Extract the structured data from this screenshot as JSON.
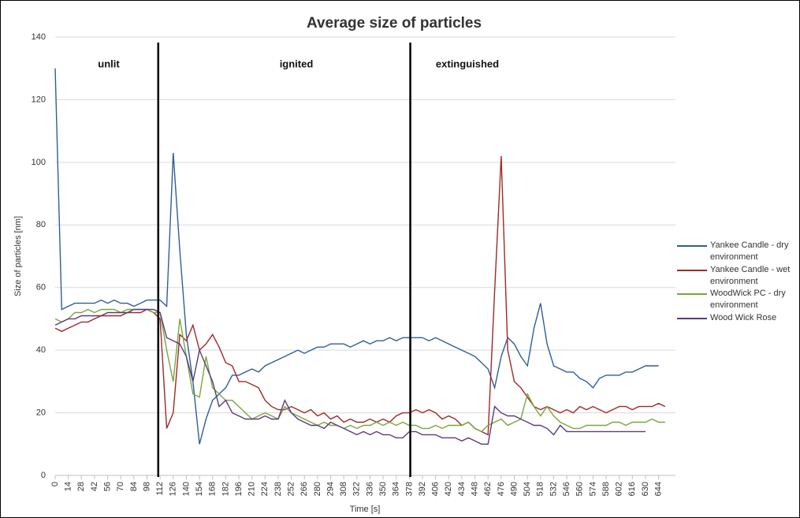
{
  "chart_data": {
    "type": "line",
    "title": "Average size of particles",
    "x_label": "Time [s]",
    "y_label": "Size of particles [nm]",
    "xlim": [
      0,
      662
    ],
    "ylim": [
      0,
      140
    ],
    "yticks": [
      0,
      20,
      40,
      60,
      80,
      100,
      120,
      140
    ],
    "xticks": [
      0,
      14,
      28,
      42,
      56,
      70,
      84,
      98,
      112,
      126,
      140,
      154,
      168,
      182,
      196,
      210,
      224,
      238,
      252,
      266,
      280,
      294,
      308,
      322,
      336,
      350,
      364,
      378,
      392,
      406,
      420,
      434,
      448,
      462,
      476,
      490,
      504,
      518,
      532,
      546,
      560,
      574,
      588,
      602,
      616,
      630,
      644
    ],
    "grid": true,
    "legend": "right",
    "phase_lines": [
      110,
      379
    ],
    "phases": [
      "unlit",
      "ignited",
      "extinguished"
    ],
    "x": [
      0,
      7,
      14,
      21,
      28,
      35,
      42,
      49,
      56,
      63,
      70,
      77,
      84,
      91,
      98,
      105,
      112,
      119,
      126,
      133,
      140,
      147,
      154,
      161,
      168,
      175,
      182,
      189,
      196,
      203,
      210,
      217,
      224,
      231,
      238,
      245,
      252,
      259,
      266,
      273,
      280,
      287,
      294,
      301,
      308,
      315,
      322,
      329,
      336,
      343,
      350,
      357,
      364,
      371,
      378,
      385,
      392,
      399,
      406,
      413,
      420,
      427,
      434,
      441,
      448,
      455,
      462,
      469,
      476,
      483,
      490,
      497,
      504,
      511,
      518,
      525,
      532,
      539,
      546,
      553,
      560,
      567,
      574,
      581,
      588,
      595,
      602,
      609,
      616,
      623,
      630,
      637,
      644,
      651
    ],
    "series": [
      {
        "name": "Yankee Candle - dry environment",
        "color": "#2e5f96",
        "values": [
          130,
          53,
          54,
          55,
          55,
          55,
          55,
          56,
          55,
          56,
          55,
          55,
          54,
          55,
          56,
          56,
          56,
          54,
          103,
          72,
          45,
          30,
          10,
          18,
          24,
          26,
          28,
          32,
          32,
          33,
          34,
          33,
          35,
          36,
          37,
          38,
          39,
          40,
          39,
          40,
          41,
          41,
          42,
          42,
          42,
          41,
          42,
          43,
          42,
          43,
          43,
          44,
          43,
          44,
          44,
          44,
          44,
          43,
          44,
          43,
          42,
          41,
          40,
          39,
          38,
          36,
          34,
          28,
          38,
          44,
          42,
          38,
          35,
          47,
          55,
          42,
          35,
          34,
          33,
          33,
          31,
          30,
          28,
          31,
          32,
          32,
          32,
          33,
          33,
          34,
          35,
          35,
          35,
          null
        ]
      },
      {
        "name": "Yankee Candle - wet environment",
        "color": "#a02828",
        "values": [
          47,
          46,
          47,
          48,
          49,
          49,
          50,
          51,
          51,
          51,
          51,
          52,
          52,
          52,
          53,
          52,
          50,
          15,
          20,
          45,
          43,
          48,
          40,
          42,
          45,
          41,
          36,
          35,
          30,
          30,
          29,
          28,
          24,
          22,
          21,
          21,
          22,
          21,
          20,
          21,
          19,
          20,
          18,
          19,
          17,
          18,
          17,
          17,
          18,
          17,
          18,
          17,
          19,
          20,
          20,
          21,
          20,
          21,
          20,
          18,
          19,
          18,
          16,
          17,
          15,
          14,
          13,
          59,
          102,
          40,
          30,
          28,
          25,
          22,
          21,
          22,
          21,
          20,
          21,
          20,
          22,
          21,
          22,
          21,
          20,
          21,
          22,
          22,
          21,
          22,
          22,
          22,
          23,
          22
        ]
      },
      {
        "name": "WoodWick PC - dry environment",
        "color": "#7aa63c",
        "values": [
          50,
          49,
          50,
          52,
          52,
          53,
          52,
          53,
          53,
          53,
          52,
          53,
          53,
          53,
          53,
          52,
          52,
          40,
          30,
          50,
          38,
          26,
          25,
          38,
          28,
          26,
          24,
          24,
          22,
          20,
          18,
          19,
          20,
          19,
          18,
          22,
          20,
          19,
          18,
          17,
          16,
          17,
          16,
          16,
          15,
          16,
          15,
          16,
          16,
          17,
          16,
          17,
          16,
          17,
          16,
          16,
          15,
          15,
          16,
          15,
          16,
          16,
          16,
          17,
          15,
          14,
          16,
          17,
          18,
          16,
          17,
          18,
          26,
          22,
          19,
          22,
          19,
          17,
          16,
          15,
          15,
          16,
          16,
          16,
          16,
          17,
          17,
          16,
          17,
          17,
          17,
          18,
          17,
          17
        ]
      },
      {
        "name": "Wood Wick Rose",
        "color": "#5b3b7e",
        "values": [
          48,
          49,
          50,
          50,
          51,
          51,
          51,
          51,
          52,
          52,
          52,
          52,
          53,
          53,
          53,
          53,
          52,
          44,
          43,
          42,
          38,
          30,
          40,
          35,
          30,
          22,
          24,
          20,
          19,
          18,
          18,
          18,
          19,
          18,
          18,
          24,
          20,
          18,
          17,
          16,
          16,
          15,
          17,
          16,
          15,
          14,
          13,
          14,
          13,
          14,
          13,
          13,
          12,
          12,
          14,
          14,
          13,
          13,
          13,
          12,
          12,
          12,
          11,
          12,
          11,
          10,
          10,
          22,
          20,
          19,
          19,
          18,
          17,
          16,
          16,
          15,
          13,
          16,
          14,
          14,
          14,
          14,
          14,
          14,
          14,
          14,
          14,
          14,
          14,
          14,
          14,
          null,
          null,
          null
        ]
      }
    ]
  }
}
